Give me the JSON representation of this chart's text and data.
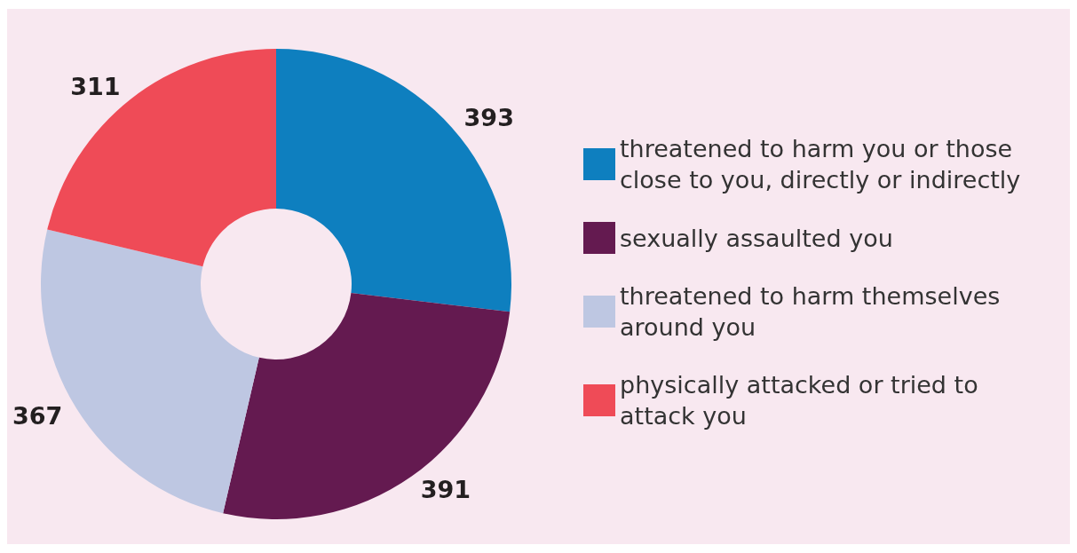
{
  "chart_data": {
    "type": "donut",
    "categories": [
      "threatened to harm you or those close to you, directly or indirectly",
      "sexually assaulted you",
      "threatened to harm themselves around you",
      "physically attacked or tried to attack you"
    ],
    "values": [
      393,
      391,
      367,
      311
    ],
    "colors": [
      "#0e7fbf",
      "#641a50",
      "#bec7e2",
      "#ef4b57"
    ],
    "data_labels": true,
    "legend": "right"
  }
}
